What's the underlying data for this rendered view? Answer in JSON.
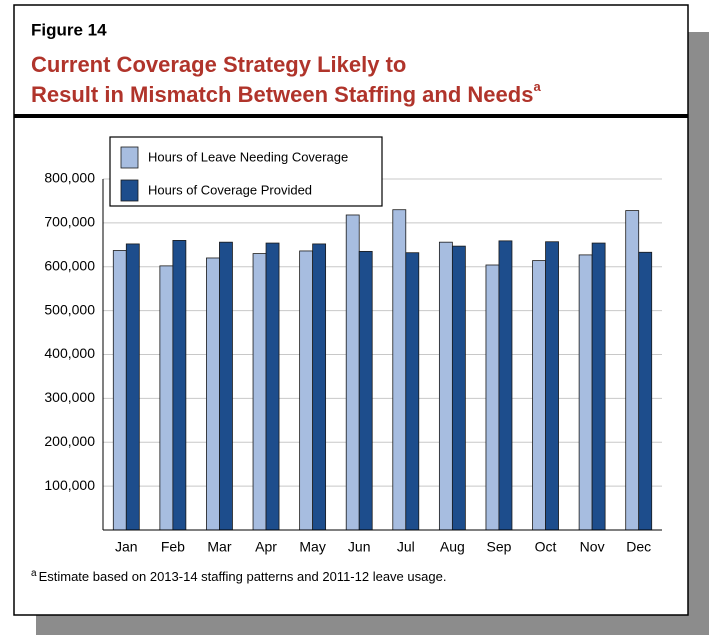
{
  "figure_label": "Figure 14",
  "title_lines": [
    "Current Coverage Strategy Likely to",
    "Result in Mismatch Between Staffing and Needs"
  ],
  "title_note_marker": "a",
  "footnote_marker": "a",
  "footnote": "Estimate based on 2013-14 staffing patterns and 2011-12 leave usage.",
  "chart_data": {
    "type": "bar",
    "categories": [
      "Jan",
      "Feb",
      "Mar",
      "Apr",
      "May",
      "Jun",
      "Jul",
      "Aug",
      "Sep",
      "Oct",
      "Nov",
      "Dec"
    ],
    "series": [
      {
        "name": "Hours of Leave Needing Coverage",
        "color": "#a7bde0",
        "values": [
          637000,
          602000,
          620000,
          630000,
          636000,
          718000,
          730000,
          656000,
          604000,
          614000,
          627000,
          728000
        ]
      },
      {
        "name": "Hours of Coverage Provided",
        "color": "#1d4d8c",
        "values": [
          652000,
          660000,
          656000,
          654000,
          652000,
          635000,
          632000,
          647000,
          659000,
          657000,
          654000,
          633000
        ]
      }
    ],
    "ylim": [
      0,
      800000
    ],
    "yticks": [
      {
        "value": 100000,
        "label": "100,000"
      },
      {
        "value": 200000,
        "label": "200,000"
      },
      {
        "value": 300000,
        "label": "300,000"
      },
      {
        "value": 400000,
        "label": "400,000"
      },
      {
        "value": 500000,
        "label": "500,000"
      },
      {
        "value": 600000,
        "label": "600,000"
      },
      {
        "value": 700000,
        "label": "700,000"
      },
      {
        "value": 800000,
        "label": "800,000"
      }
    ],
    "grid": true,
    "legend": "top-left"
  }
}
